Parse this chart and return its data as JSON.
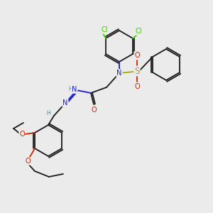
{
  "background_color": "#ebebeb",
  "colors": {
    "bond": "#1a1a1a",
    "nitrogen": "#1a1acc",
    "oxygen": "#cc2200",
    "sulfur": "#aaaa00",
    "chlorine": "#44cc00",
    "hydrogen": "#558899"
  },
  "layout": {
    "figsize": [
      3.0,
      3.0
    ],
    "dpi": 100,
    "xlim": [
      0,
      300
    ],
    "ylim": [
      0,
      300
    ]
  }
}
